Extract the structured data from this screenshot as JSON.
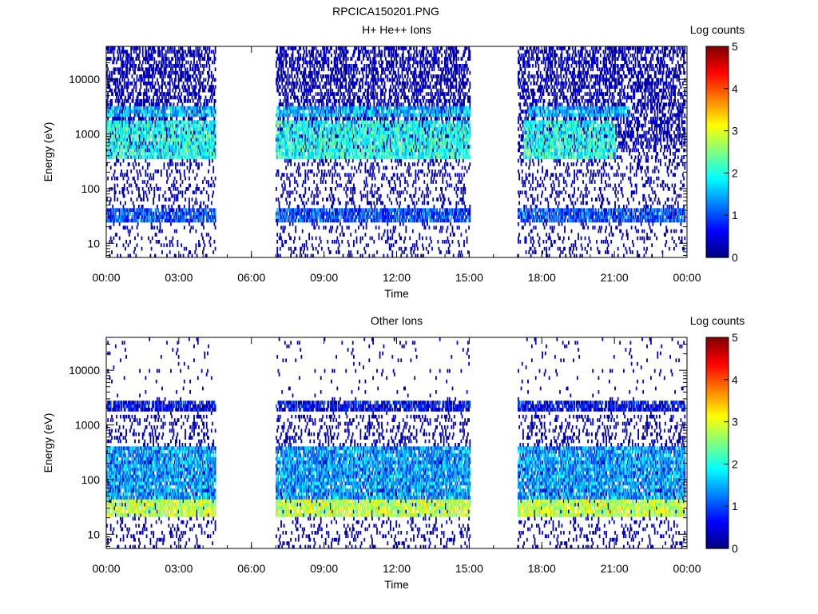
{
  "window_title": "RPCICA150201.PNG",
  "chart_data": [
    {
      "type": "heatmap",
      "title": "H+ He++ Ions",
      "xlabel": "Time",
      "ylabel": "Energy (eV)",
      "x_ticks": [
        "00:00",
        "03:00",
        "06:00",
        "09:00",
        "12:00",
        "15:00",
        "18:00",
        "21:00",
        "00:00"
      ],
      "y_ticks": [
        "10",
        "100",
        "1000",
        "10000"
      ],
      "y_scale": "log",
      "ylim_eV": [
        5.5,
        40000
      ],
      "xlim_hours": [
        0,
        24
      ],
      "colorbar": {
        "label": "Log counts",
        "ticks": [
          "0",
          "1",
          "2",
          "3",
          "4",
          "5"
        ],
        "range": [
          0,
          5
        ]
      },
      "data_intervals_hours": [
        [
          0,
          4.5
        ],
        [
          7.0,
          15.0
        ],
        [
          17.0,
          23.9
        ]
      ],
      "bands": [
        {
          "e_low": 2000,
          "e_high": 3200,
          "mean": 1.5,
          "intervals": [
            [
              0,
              4.5
            ],
            [
              7.0,
              15.0
            ],
            [
              17.4,
              21.6
            ]
          ]
        },
        {
          "e_low": 350,
          "e_high": 1800,
          "mean": 2.0,
          "intervals": [
            [
              0,
              4.5
            ],
            [
              7.0,
              15.0
            ],
            [
              17.2,
              21.0
            ]
          ]
        },
        {
          "e_low": 25,
          "e_high": 45,
          "mean": 1.0,
          "intervals": [
            [
              0,
              4.5
            ],
            [
              7.0,
              15.0
            ],
            [
              17.0,
              23.9
            ]
          ]
        }
      ]
    },
    {
      "type": "heatmap",
      "title": "Other Ions",
      "xlabel": "Time",
      "ylabel": "Energy (eV)",
      "x_ticks": [
        "00:00",
        "03:00",
        "06:00",
        "09:00",
        "12:00",
        "15:00",
        "18:00",
        "21:00",
        "00:00"
      ],
      "y_ticks": [
        "10",
        "100",
        "1000",
        "10000"
      ],
      "y_scale": "log",
      "ylim_eV": [
        5.5,
        40000
      ],
      "xlim_hours": [
        0,
        24
      ],
      "colorbar": {
        "label": "Log counts",
        "ticks": [
          "0",
          "1",
          "2",
          "3",
          "4",
          "5"
        ],
        "range": [
          0,
          5
        ]
      },
      "data_intervals_hours": [
        [
          0,
          4.5
        ],
        [
          7.0,
          15.0
        ],
        [
          17.0,
          23.9
        ]
      ],
      "bands": [
        {
          "e_low": 1900,
          "e_high": 2800,
          "mean": 0.6,
          "intervals": [
            [
              0,
              4.5
            ],
            [
              7.0,
              15.0
            ],
            [
              17.0,
              23.9
            ]
          ]
        },
        {
          "e_low": 45,
          "e_high": 400,
          "mean": 1.4,
          "intervals": [
            [
              0,
              4.5
            ],
            [
              7.0,
              15.0
            ],
            [
              17.0,
              23.9
            ]
          ]
        },
        {
          "e_low": 22,
          "e_high": 45,
          "mean": 2.8,
          "intervals": [
            [
              0,
              4.5
            ],
            [
              7.0,
              15.0
            ],
            [
              17.0,
              23.9
            ]
          ]
        }
      ]
    }
  ]
}
